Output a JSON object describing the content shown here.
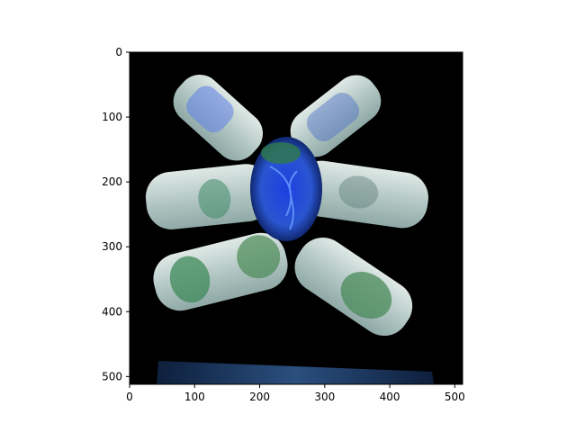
{
  "figure": {
    "background": "#ffffff",
    "image_background": "#000000"
  },
  "axes": {
    "x": {
      "ticks": [
        0,
        100,
        200,
        300,
        400,
        500
      ],
      "labels": [
        "0",
        "100",
        "200",
        "300",
        "400",
        "500"
      ],
      "range": [
        0,
        512
      ]
    },
    "y": {
      "ticks": [
        0,
        100,
        200,
        300,
        400,
        500
      ],
      "labels": [
        "0",
        "100",
        "200",
        "300",
        "400",
        "500"
      ],
      "range": [
        0,
        512
      ]
    }
  },
  "image": {
    "subject": "spring-rolls-icon",
    "colors": {
      "roll_wrapper": "#b9c9c8",
      "roll_highlight": "#e3ece9",
      "filling_green": "#3f8a5a",
      "center_blue": "#2a4fd8",
      "plate_edge": "#1a3a6a"
    }
  }
}
